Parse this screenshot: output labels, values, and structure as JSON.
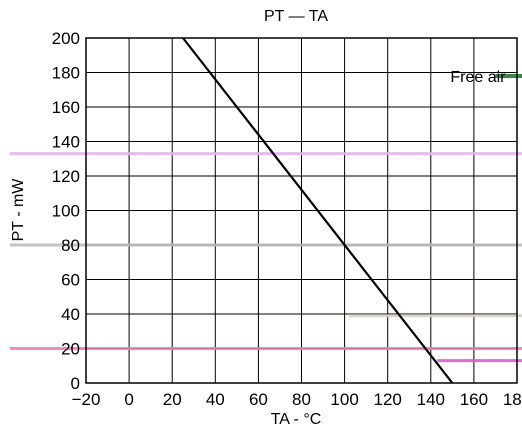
{
  "chart_data": {
    "type": "line",
    "title": "PT — TA",
    "xlabel": "TA - °C",
    "ylabel": "PT - mW",
    "xlim": [
      -20,
      180
    ],
    "ylim": [
      0,
      200
    ],
    "x_ticks": [
      -20,
      0,
      20,
      40,
      60,
      80,
      100,
      120,
      140,
      160,
      180
    ],
    "y_ticks": [
      0,
      20,
      40,
      60,
      80,
      100,
      120,
      140,
      160,
      180,
      200
    ],
    "grid": true,
    "series": [
      {
        "x": [
          25,
          150
        ],
        "y": [
          200,
          0
        ],
        "color": "#000000"
      }
    ],
    "annotations": [
      {
        "text": "Free air",
        "x": 150,
        "y": 178
      }
    ],
    "reference_lines": [
      {
        "y": 133,
        "color": "#e6b3f0"
      },
      {
        "y": 80,
        "color": "#bdbdbd"
      },
      {
        "y": 39,
        "color": "#d6d2c4"
      },
      {
        "y": 20,
        "color": "#f07fb4"
      },
      {
        "y": 13,
        "color": "#e05ad0"
      },
      {
        "y": 178,
        "color": "#1f7a3a"
      }
    ]
  }
}
